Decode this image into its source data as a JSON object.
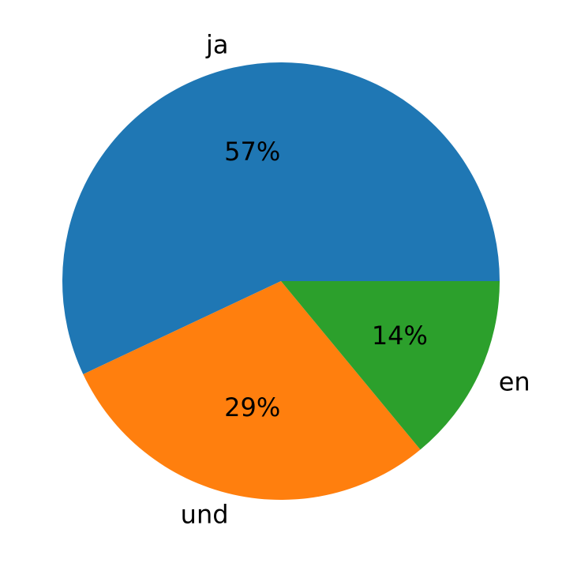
{
  "chart_data": {
    "type": "pie",
    "categories": [
      "ja",
      "und",
      "en"
    ],
    "values": [
      57,
      29,
      14
    ],
    "value_labels": [
      "57%",
      "29%",
      "14%"
    ],
    "colors": [
      "#1f77b4",
      "#ff7f0e",
      "#2ca02c"
    ],
    "start_angle": 0,
    "counterclockwise": true
  }
}
